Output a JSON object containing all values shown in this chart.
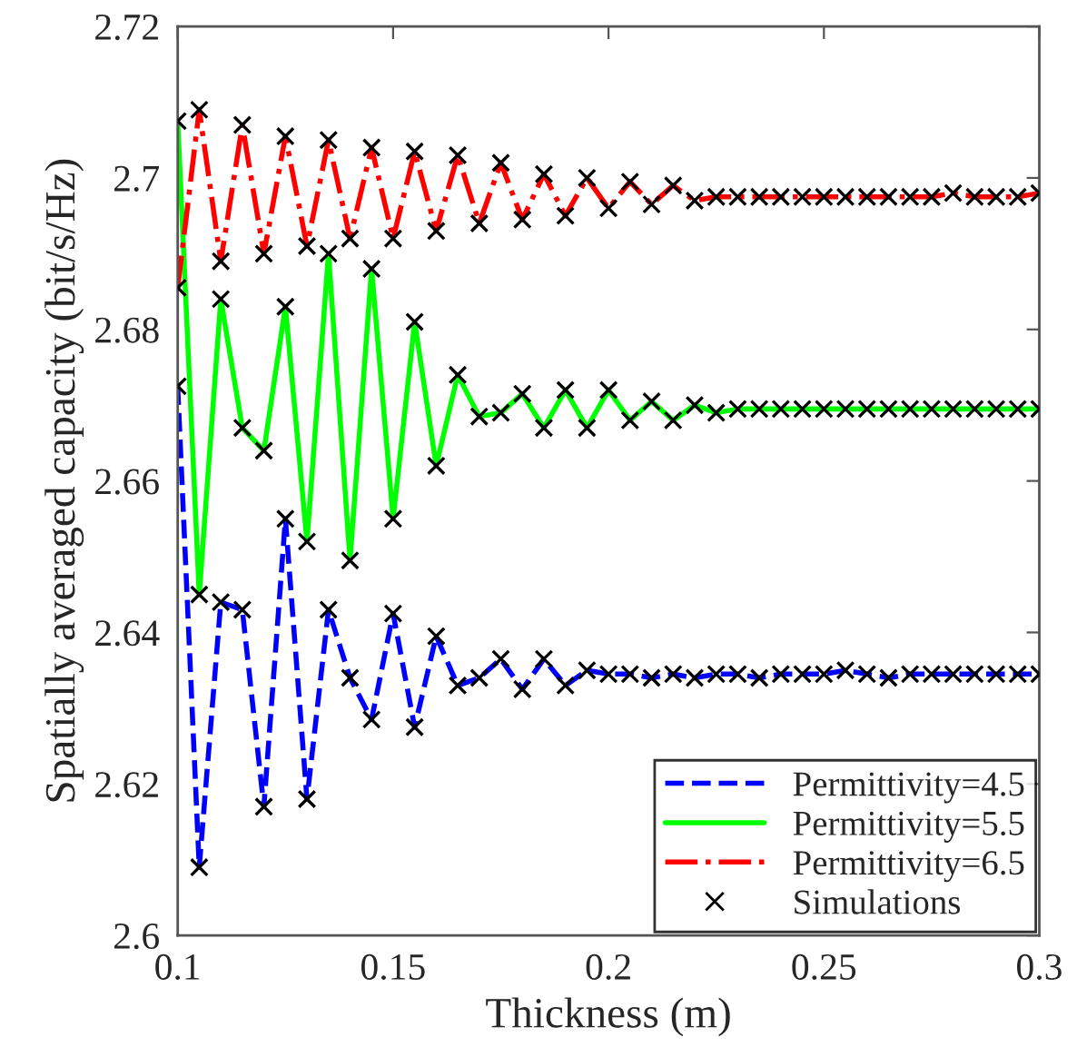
{
  "chart_data": {
    "type": "line",
    "xlabel": "Thickness (m)",
    "ylabel": "Spatially averaged capacity (bit/s/Hz)",
    "x": [
      0.1,
      0.105,
      0.11,
      0.115,
      0.12,
      0.125,
      0.13,
      0.135,
      0.14,
      0.145,
      0.15,
      0.155,
      0.16,
      0.165,
      0.17,
      0.175,
      0.18,
      0.185,
      0.19,
      0.195,
      0.2,
      0.205,
      0.21,
      0.215,
      0.22,
      0.225,
      0.23,
      0.235,
      0.24,
      0.245,
      0.25,
      0.255,
      0.26,
      0.265,
      0.27,
      0.275,
      0.28,
      0.285,
      0.29,
      0.295,
      0.3
    ],
    "series": [
      {
        "name": "Permittivity=4.5",
        "color": "#0000ff",
        "line_style": "dashed",
        "values": [
          2.6725,
          2.609,
          2.644,
          2.643,
          2.617,
          2.655,
          2.618,
          2.643,
          2.634,
          2.6285,
          2.6425,
          2.6275,
          2.6395,
          2.633,
          2.634,
          2.6365,
          2.6325,
          2.6365,
          2.633,
          2.635,
          2.6345,
          2.6345,
          2.634,
          2.6345,
          2.634,
          2.6345,
          2.6345,
          2.634,
          2.6345,
          2.6345,
          2.6345,
          2.635,
          2.6345,
          2.634,
          2.6345,
          2.6345,
          2.6345,
          2.6345,
          2.6345,
          2.6345,
          2.6345
        ]
      },
      {
        "name": "Permittivity=5.5",
        "color": "#00ff00",
        "line_style": "solid",
        "values": [
          2.7075,
          2.645,
          2.684,
          2.667,
          2.664,
          2.683,
          2.652,
          2.69,
          2.6495,
          2.688,
          2.655,
          2.681,
          2.662,
          2.674,
          2.6685,
          2.669,
          2.6715,
          2.667,
          2.672,
          2.667,
          2.672,
          2.668,
          2.6705,
          2.668,
          2.67,
          2.669,
          2.6695,
          2.6695,
          2.6695,
          2.6695,
          2.6695,
          2.6695,
          2.6695,
          2.6695,
          2.6695,
          2.6695,
          2.6695,
          2.6695,
          2.6695,
          2.6695,
          2.6695
        ]
      },
      {
        "name": "Permittivity=6.5",
        "color": "#ff0000",
        "line_style": "dashdot",
        "values": [
          2.6855,
          2.709,
          2.689,
          2.707,
          2.69,
          2.7055,
          2.691,
          2.705,
          2.692,
          2.704,
          2.692,
          2.7035,
          2.693,
          2.703,
          2.694,
          2.702,
          2.6945,
          2.7005,
          2.695,
          2.7,
          2.696,
          2.6995,
          2.6965,
          2.699,
          2.697,
          2.6975,
          2.6975,
          2.6975,
          2.6975,
          2.6975,
          2.6975,
          2.6975,
          2.6975,
          2.6975,
          2.6975,
          2.6975,
          2.698,
          2.6975,
          2.6975,
          2.6975,
          2.698
        ]
      },
      {
        "name": "Simulations",
        "type": "scatter",
        "marker": "cross",
        "color": "#000000",
        "x": [
          0.1,
          0.105,
          0.11,
          0.115,
          0.12,
          0.125,
          0.13,
          0.135,
          0.14,
          0.145,
          0.15,
          0.155,
          0.16,
          0.165,
          0.17,
          0.175,
          0.18,
          0.185,
          0.19,
          0.195,
          0.2,
          0.205,
          0.21,
          0.215,
          0.22,
          0.225,
          0.23,
          0.235,
          0.24,
          0.245,
          0.25,
          0.255,
          0.26,
          0.265,
          0.27,
          0.275,
          0.28,
          0.285,
          0.29,
          0.295,
          0.3,
          0.1,
          0.105,
          0.11,
          0.115,
          0.12,
          0.125,
          0.13,
          0.135,
          0.14,
          0.145,
          0.15,
          0.155,
          0.16,
          0.165,
          0.17,
          0.175,
          0.18,
          0.185,
          0.19,
          0.195,
          0.2,
          0.205,
          0.21,
          0.215,
          0.22,
          0.225,
          0.23,
          0.235,
          0.24,
          0.245,
          0.25,
          0.255,
          0.26,
          0.265,
          0.27,
          0.275,
          0.28,
          0.285,
          0.29,
          0.295,
          0.3,
          0.1,
          0.105,
          0.11,
          0.115,
          0.12,
          0.125,
          0.13,
          0.135,
          0.14,
          0.145,
          0.15,
          0.155,
          0.16,
          0.165,
          0.17,
          0.175,
          0.18,
          0.185,
          0.19,
          0.195,
          0.2,
          0.205,
          0.21,
          0.215,
          0.22,
          0.225,
          0.23,
          0.235,
          0.24,
          0.245,
          0.25,
          0.255,
          0.26,
          0.265,
          0.27,
          0.275,
          0.28,
          0.285,
          0.29,
          0.295,
          0.3
        ],
        "values": [
          2.6725,
          2.609,
          2.644,
          2.643,
          2.617,
          2.655,
          2.618,
          2.643,
          2.634,
          2.6285,
          2.6425,
          2.6275,
          2.6395,
          2.633,
          2.634,
          2.6365,
          2.6325,
          2.6365,
          2.633,
          2.635,
          2.6345,
          2.6345,
          2.634,
          2.6345,
          2.634,
          2.6345,
          2.6345,
          2.634,
          2.6345,
          2.6345,
          2.6345,
          2.635,
          2.6345,
          2.634,
          2.6345,
          2.6345,
          2.6345,
          2.6345,
          2.6345,
          2.6345,
          2.6345,
          2.7075,
          2.645,
          2.684,
          2.667,
          2.664,
          2.683,
          2.652,
          2.69,
          2.6495,
          2.688,
          2.655,
          2.681,
          2.662,
          2.674,
          2.6685,
          2.669,
          2.6715,
          2.667,
          2.672,
          2.667,
          2.672,
          2.668,
          2.6705,
          2.668,
          2.67,
          2.669,
          2.6695,
          2.6695,
          2.6695,
          2.6695,
          2.6695,
          2.6695,
          2.6695,
          2.6695,
          2.6695,
          2.6695,
          2.6695,
          2.6695,
          2.6695,
          2.6695,
          2.6695,
          2.6855,
          2.709,
          2.689,
          2.707,
          2.69,
          2.7055,
          2.691,
          2.705,
          2.692,
          2.704,
          2.692,
          2.7035,
          2.693,
          2.703,
          2.694,
          2.702,
          2.6945,
          2.7005,
          2.695,
          2.7,
          2.696,
          2.6995,
          2.6965,
          2.699,
          2.697,
          2.6975,
          2.6975,
          2.6975,
          2.6975,
          2.6975,
          2.6975,
          2.6975,
          2.6975,
          2.6975,
          2.6975,
          2.6975,
          2.698,
          2.6975,
          2.6975,
          2.6975,
          2.698
        ]
      }
    ],
    "xlim": [
      0.1,
      0.3
    ],
    "ylim": [
      2.6,
      2.72
    ],
    "xticks": [
      0.1,
      0.15,
      0.2,
      0.25,
      0.3
    ],
    "yticks": [
      2.6,
      2.62,
      2.64,
      2.66,
      2.68,
      2.7,
      2.72
    ],
    "grid": false,
    "legend": "bottom right"
  }
}
